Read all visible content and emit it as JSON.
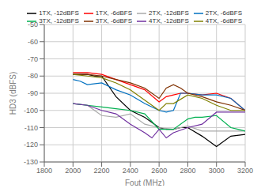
{
  "chart_data": {
    "type": "line",
    "xlabel": "Fout (MHz)",
    "ylabel": "HD3 (dBFS)",
    "xlim": [
      1800,
      3200
    ],
    "ylim": [
      -130,
      -50
    ],
    "xticks": [
      1800,
      2000,
      2200,
      2400,
      2600,
      2800,
      3000,
      3200
    ],
    "yticks": [
      -130,
      -120,
      -110,
      -100,
      -90,
      -80,
      -70,
      -60,
      -50
    ],
    "grid": true,
    "legend": "upper right",
    "series": [
      {
        "name": "1TX, -12dBFS",
        "color": "#000000",
        "x": [
          2000,
          2050,
          2100,
          2150,
          2200,
          2300,
          2400,
          2500,
          2600,
          2650,
          2700,
          2750,
          2800,
          2900,
          3000,
          3100,
          3200
        ],
        "values": [
          -79,
          -79,
          -79,
          -80,
          -80,
          -92,
          -100,
          -104,
          -110,
          -111,
          -111,
          -110,
          -110,
          -115,
          -121,
          -115,
          -114
        ]
      },
      {
        "name": "1TX, -6dBFS",
        "color": "#ff0000",
        "x": [
          2000,
          2050,
          2100,
          2200,
          2300,
          2400,
          2500,
          2600,
          2650,
          2700,
          2750,
          2800,
          2900,
          3000,
          3100,
          3200
        ],
        "values": [
          -78,
          -78,
          -78,
          -79,
          -82,
          -85,
          -88,
          -95,
          -92,
          -91,
          -90,
          -90,
          -91,
          -90,
          -93,
          -100
        ]
      },
      {
        "name": "2TX, -12dBFS",
        "color": "#aaaaaa",
        "x": [
          2000,
          2100,
          2150,
          2200,
          2300,
          2400,
          2500,
          2600,
          2700,
          2800,
          2900,
          3000,
          3100,
          3200
        ],
        "values": [
          -96,
          -97,
          -100,
          -103,
          -104,
          -102,
          -108,
          -110,
          -111,
          -109,
          -112,
          -112,
          -112,
          -112
        ]
      },
      {
        "name": "2TX, -6dBFS",
        "color": "#0070c0",
        "x": [
          2000,
          2050,
          2100,
          2200,
          2300,
          2400,
          2500,
          2600,
          2650,
          2700,
          2750,
          2800,
          2900,
          3000,
          3100,
          3200
        ],
        "values": [
          -82,
          -83,
          -85,
          -84,
          -88,
          -91,
          -96,
          -100,
          -101,
          -100,
          -90,
          -90,
          -91,
          -91,
          -93,
          -100
        ]
      },
      {
        "name": "3TX, -12dBFS",
        "color": "#00b050",
        "x": [
          2000,
          2100,
          2200,
          2300,
          2400,
          2500,
          2600,
          2650,
          2700,
          2800,
          2850,
          2900,
          3000,
          3100,
          3150,
          3200
        ],
        "values": [
          -96,
          -97,
          -98,
          -99,
          -100,
          -102,
          -111,
          -111,
          -111,
          -105,
          -104,
          -104,
          -103,
          -110,
          -111,
          -112
        ]
      },
      {
        "name": "3TX, -6dBFS",
        "color": "#7f3000",
        "x": [
          2000,
          2100,
          2200,
          2300,
          2400,
          2500,
          2600,
          2650,
          2700,
          2750,
          2800,
          2900,
          3000,
          3100,
          3200
        ],
        "values": [
          -79,
          -79,
          -80,
          -82,
          -84,
          -87,
          -93,
          -87,
          -85,
          -87,
          -90,
          -92,
          -95,
          -97,
          -100
        ]
      },
      {
        "name": "4TX, -12dBFS",
        "color": "#7030a0",
        "x": [
          2000,
          2100,
          2200,
          2300,
          2400,
          2500,
          2550,
          2600,
          2650,
          2700,
          2800,
          2900,
          3000,
          3100,
          3200
        ],
        "values": [
          -96,
          -97,
          -100,
          -102,
          -108,
          -113,
          -116,
          -111,
          -116,
          -113,
          -110,
          -108,
          -101,
          -101,
          -101
        ]
      },
      {
        "name": "4TX, -6dBFS",
        "color": "#808000",
        "x": [
          2000,
          2100,
          2200,
          2300,
          2400,
          2500,
          2600,
          2650,
          2700,
          2800,
          2900,
          3000,
          3100,
          3200
        ],
        "values": [
          -79,
          -80,
          -81,
          -84,
          -88,
          -94,
          -100,
          -96,
          -96,
          -91,
          -93,
          -97,
          -100,
          -100
        ]
      }
    ]
  }
}
